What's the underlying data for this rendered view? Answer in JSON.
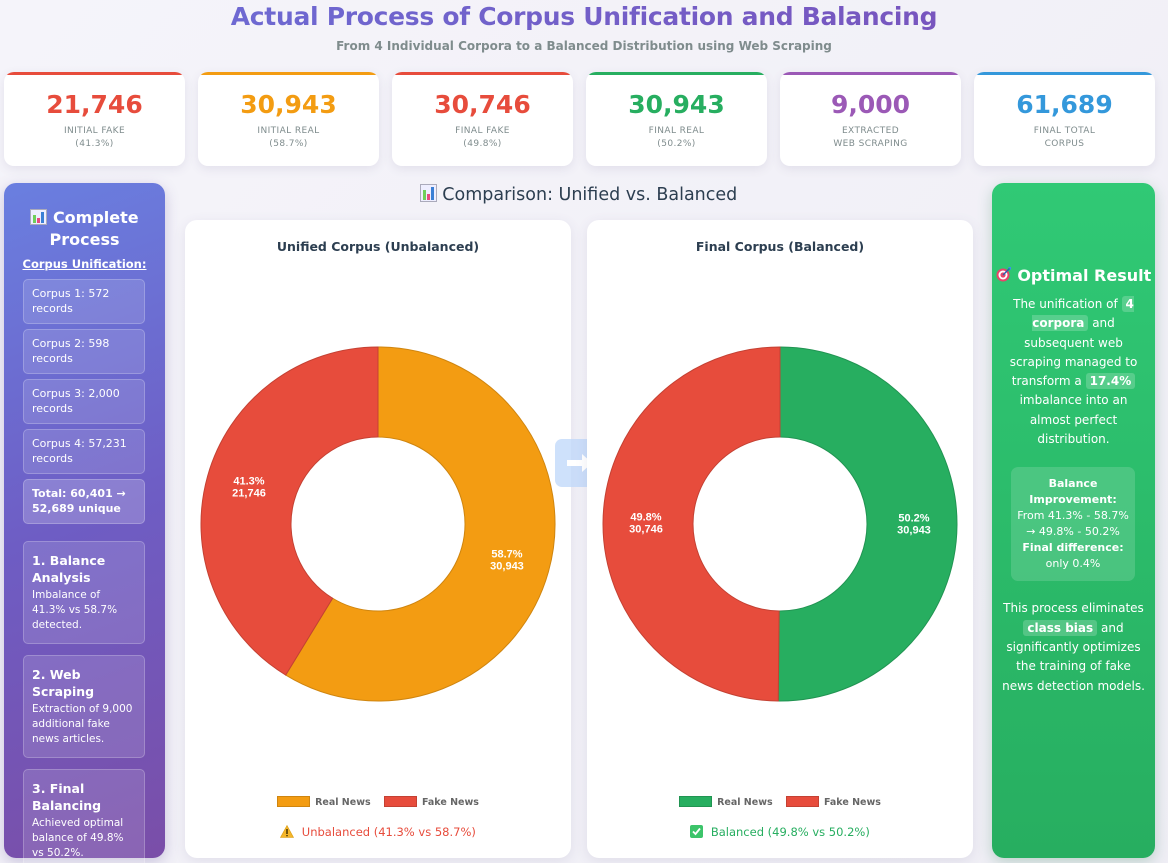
{
  "header": {
    "title": "Actual Process of Corpus Unification and Balancing",
    "subtitle": "From 4 Individual Corpora to a Balanced Distribution using Web Scraping"
  },
  "stats": [
    {
      "value": "21,746",
      "label_1": "INITIAL FAKE",
      "label_2": "(41.3%)",
      "color": "#e74c3c"
    },
    {
      "value": "30,943",
      "label_1": "INITIAL REAL",
      "label_2": "(58.7%)",
      "color": "#f39c12"
    },
    {
      "value": "30,746",
      "label_1": "FINAL FAKE",
      "label_2": "(49.8%)",
      "color": "#e74c3c"
    },
    {
      "value": "30,943",
      "label_1": "FINAL REAL",
      "label_2": "(50.2%)",
      "color": "#27ae60"
    },
    {
      "value": "9,000",
      "label_1": "EXTRACTED",
      "label_2": "WEB SCRAPING",
      "color": "#9b59b6"
    },
    {
      "value": "61,689",
      "label_1": "FINAL TOTAL",
      "label_2": "CORPUS",
      "color": "#3498db"
    }
  ],
  "left_panel": {
    "icon": "bar-chart-icon",
    "title": "Complete Process",
    "subheading": "Corpus Unification:",
    "corpora": [
      "Corpus 1: 572 records",
      "Corpus 2: 598 records",
      "Corpus 3: 2,000 records",
      "Corpus 4: 57,231 records"
    ],
    "total": "Total: 60,401 → 52,689 unique",
    "steps": [
      {
        "title": "1. Balance Analysis",
        "desc": "Imbalance of 41.3% vs 58.7% detected."
      },
      {
        "title": "2. Web Scraping",
        "desc": "Extraction of 9,000 additional fake news articles."
      },
      {
        "title": "3. Final Balancing",
        "desc": "Achieved optimal balance of 49.8% vs 50.2%."
      }
    ]
  },
  "comparison": {
    "icon": "bar-chart-icon",
    "title": "Comparison: Unified vs. Balanced"
  },
  "right_panel": {
    "icon": "target-icon",
    "title": "Optimal Result",
    "p1_a": "The unification of",
    "p1_hl1": "4 corpora",
    "p1_b": "and subsequent web scraping managed to transform a",
    "p1_hl2": "17.4%",
    "p1_c": "imbalance into an almost perfect distribution.",
    "improvement_label": "Balance Improvement:",
    "improvement_text": "From 41.3% - 58.7% → 49.8% - 50.2%",
    "difference_label": "Final difference:",
    "difference_text": "only 0.4%",
    "p2_a": "This process eliminates",
    "p2_hl": "class bias",
    "p2_b": "and significantly optimizes the training of fake news detection models."
  },
  "chart_data": [
    {
      "type": "pie",
      "title": "Unified Corpus (Unbalanced)",
      "categories": [
        "Real News",
        "Fake News"
      ],
      "values": [
        30943,
        21746
      ],
      "percents": [
        58.7,
        41.3
      ],
      "labels": [
        "58.7%\n30,943",
        "41.3%\n21,746"
      ],
      "colors": [
        "#f39c12",
        "#e74c3c"
      ],
      "donut": true,
      "legend": "bottom",
      "status": {
        "icon": "warning-icon",
        "text": "Unbalanced (41.3% vs 58.7%)",
        "color": "#e74c3c"
      }
    },
    {
      "type": "pie",
      "title": "Final Corpus (Balanced)",
      "categories": [
        "Real News",
        "Fake News"
      ],
      "values": [
        30943,
        30746
      ],
      "percents": [
        50.2,
        49.8
      ],
      "labels": [
        "50.2%\n30,943",
        "49.8%\n30,746"
      ],
      "colors": [
        "#27ae60",
        "#e74c3c"
      ],
      "donut": true,
      "legend": "bottom",
      "status": {
        "icon": "check-icon",
        "text": "Balanced (49.8% vs 50.2%)",
        "color": "#27ae60"
      }
    }
  ]
}
